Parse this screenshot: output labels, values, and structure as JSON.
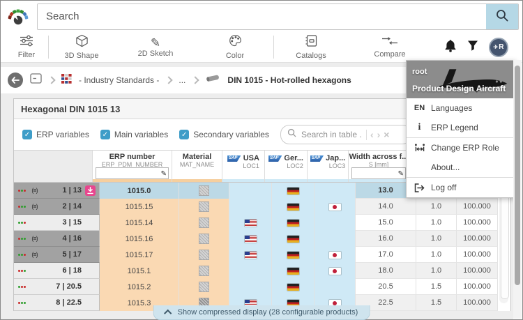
{
  "topbar": {
    "search_placeholder": "Search"
  },
  "toolbar": {
    "items": [
      {
        "label": "Filter"
      },
      {
        "label": "3D Shape"
      },
      {
        "label": "2D Sketch"
      },
      {
        "label": "Color"
      },
      {
        "label": "Catalogs"
      },
      {
        "label": "Compare"
      }
    ],
    "avatar_initial": "R"
  },
  "breadcrumb": {
    "industry_standards": "- Industry Standards -",
    "ellipsis": "...",
    "current": "DIN 1015 - Hot-rolled hexagons"
  },
  "panel": {
    "title": "Hexagonal DIN 1015 13"
  },
  "controls": {
    "checkboxes": [
      {
        "label": "ERP variables",
        "checked": true
      },
      {
        "label": "Main variables",
        "checked": true
      },
      {
        "label": "Secondary variables",
        "checked": true
      }
    ],
    "check_glyph": "✓",
    "table_search_placeholder": "Search in table ...",
    "nav_prev": "‹",
    "nav_next": "›",
    "clear": "×"
  },
  "table": {
    "sap_badge": "SAP",
    "columns": [
      {
        "label": "ERP number",
        "sub": "ERP_PDM_NUMBER",
        "sap": false,
        "filter": true,
        "stripe": "#f6cf9e"
      },
      {
        "label": "Material",
        "sub": "MAT_NAME",
        "sap": false,
        "filter": false,
        "stripe": "#f6cf9e"
      },
      {
        "label": "USA",
        "sub": "LOC1",
        "sap": true,
        "filter": false,
        "stripe": "#cfe9f6"
      },
      {
        "label": "Ger...",
        "sub": "LOC2",
        "sap": true,
        "filter": false,
        "stripe": "#cfe9f6"
      },
      {
        "label": "Jap...",
        "sub": "LOC3",
        "sap": true,
        "filter": false,
        "stripe": "#cfe9f6"
      },
      {
        "label": "Width across f...",
        "sub": "S [mm]",
        "sap": false,
        "filter": true,
        "stripe": "#cfe9f6"
      }
    ],
    "config_glyph": "(≡)",
    "rows": [
      {
        "index": "1 | 13",
        "dots": [
          "red",
          "green",
          "red"
        ],
        "config": true,
        "selected": true,
        "download": true,
        "erp": "1015.0",
        "mat": "light",
        "usa": false,
        "ger": true,
        "jap": false,
        "width": "13.0",
        "v1": "",
        "v2": ""
      },
      {
        "index": "2 | 14",
        "dots": [
          "red",
          "green",
          "green"
        ],
        "config": true,
        "selected": true,
        "download": false,
        "erp": "1015.15",
        "mat": "light",
        "usa": false,
        "ger": true,
        "jap": true,
        "width": "14.0",
        "v1": "1.0",
        "v2": "100.000"
      },
      {
        "index": "3 | 15",
        "dots": [
          "green",
          "green",
          "red"
        ],
        "config": false,
        "selected": false,
        "download": false,
        "erp": "1015.14",
        "mat": "light",
        "usa": true,
        "ger": true,
        "jap": false,
        "width": "15.0",
        "v1": "1.0",
        "v2": "100.000"
      },
      {
        "index": "4 | 16",
        "dots": [
          "red",
          "green",
          "green"
        ],
        "config": true,
        "selected": true,
        "download": false,
        "erp": "1015.16",
        "mat": "light",
        "usa": true,
        "ger": true,
        "jap": false,
        "width": "16.0",
        "v1": "1.0",
        "v2": "100.000"
      },
      {
        "index": "5 | 17",
        "dots": [
          "green",
          "green",
          "red"
        ],
        "config": true,
        "selected": true,
        "download": false,
        "erp": "1015.17",
        "mat": "light",
        "usa": true,
        "ger": true,
        "jap": true,
        "width": "17.0",
        "v1": "1.0",
        "v2": "100.000"
      },
      {
        "index": "6 | 18",
        "dots": [
          "red",
          "red",
          "green"
        ],
        "config": false,
        "selected": false,
        "download": false,
        "erp": "1015.1",
        "mat": "light",
        "usa": false,
        "ger": true,
        "jap": true,
        "width": "18.0",
        "v1": "1.0",
        "v2": "100.000"
      },
      {
        "index": "7 | 20.5",
        "dots": [
          "green",
          "red",
          "red"
        ],
        "config": false,
        "selected": false,
        "download": false,
        "erp": "1015.2",
        "mat": "light",
        "usa": false,
        "ger": true,
        "jap": false,
        "width": "20.5",
        "v1": "1.5",
        "v2": "100.000"
      },
      {
        "index": "8 | 22.5",
        "dots": [
          "red",
          "green",
          "green"
        ],
        "config": false,
        "selected": false,
        "download": false,
        "erp": "1015.3",
        "mat": "dark",
        "usa": true,
        "ger": true,
        "jap": true,
        "width": "22.5",
        "v1": "1.5",
        "v2": "100.000"
      }
    ]
  },
  "bottom_bar": {
    "label": "Show compressed display (28 configurable products)"
  },
  "user_menu": {
    "role": "root",
    "project": "Product Design Aircraft",
    "items": [
      {
        "prefix": "EN",
        "label": "Languages"
      },
      {
        "prefix": "",
        "label": "ERP Legend"
      },
      {
        "prefix": "",
        "label": "Change ERP Role"
      },
      {
        "prefix": "",
        "label": "About..."
      },
      {
        "prefix": "",
        "label": "Log off"
      }
    ]
  },
  "colors": {
    "search_button": "#b5d8e6",
    "row_blue": "#bcd9e6",
    "row_orange": "#fad9b3",
    "location_column_blue": "#cfe9f6",
    "checkbox_blue": "#3e9dc8",
    "download_pink": "#e8468e",
    "selected_handle_gray": "#a2a2a2"
  }
}
